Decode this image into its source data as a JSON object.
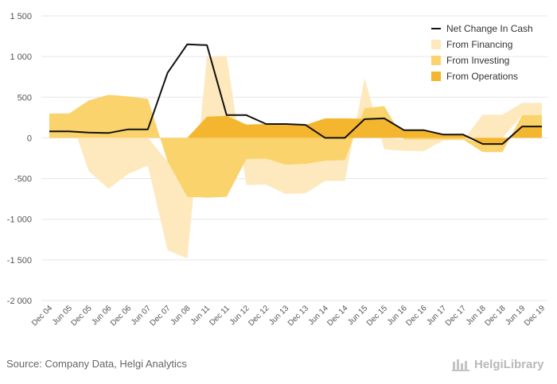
{
  "chart_data": {
    "type": "area",
    "x": [
      "Dec 04",
      "Jun 05",
      "Dec 05",
      "Jun 06",
      "Dec 06",
      "Jun 07",
      "Dec 07",
      "Jun 08",
      "Jun 11",
      "Dec 11",
      "Jun 12",
      "Dec 12",
      "Jun 13",
      "Dec 13",
      "Jun 14",
      "Dec 14",
      "Jun 15",
      "Dec 15",
      "Jun 16",
      "Dec 16",
      "Jun 17",
      "Dec 17",
      "Jun 18",
      "Dec 18",
      "Jun 19",
      "Dec 19"
    ],
    "ylim": [
      -2000,
      1500
    ],
    "yticks": [
      1500,
      1000,
      500,
      0,
      -500,
      -1000,
      -1500,
      -2000
    ],
    "ytick_labels": [
      "1 500",
      "1 000",
      "500",
      "0",
      "-500",
      "-1 000",
      "-1 500",
      "-2 000"
    ],
    "xlabel": "",
    "ylabel": "",
    "grid": true,
    "legend_position": "top-right",
    "series": [
      {
        "name": "From Operations",
        "color": "#f5b62f",
        "values": [
          0,
          0,
          0,
          0,
          0,
          0,
          0,
          0,
          260,
          270,
          165,
          170,
          160,
          160,
          240,
          240,
          235,
          240,
          95,
          100,
          40,
          40,
          -75,
          -75,
          140,
          140
        ]
      },
      {
        "name": "From Investing",
        "color": "#fbd36c",
        "values": [
          300,
          300,
          460,
          530,
          510,
          480,
          -290,
          -725,
          -735,
          -725,
          -260,
          -255,
          -330,
          -320,
          -280,
          -275,
          130,
          150,
          -20,
          -20,
          -20,
          -20,
          -100,
          -100,
          140,
          140
        ]
      },
      {
        "name": "From Financing",
        "color": "#fde9bd",
        "values": [
          0,
          0,
          -410,
          -625,
          -445,
          -340,
          -1090,
          -760,
          740,
          735,
          -320,
          -320,
          -360,
          -360,
          -250,
          -255,
          370,
          -140,
          -140,
          -145,
          -10,
          -10,
          285,
          285,
          150,
          150
        ]
      },
      {
        "name": "Net Change In Cash",
        "color": "#111111",
        "type": "line",
        "values": [
          80,
          80,
          65,
          60,
          105,
          105,
          800,
          1150,
          1140,
          280,
          280,
          170,
          170,
          160,
          0,
          0,
          230,
          240,
          95,
          95,
          40,
          40,
          -75,
          -75,
          140,
          140
        ]
      }
    ]
  },
  "footer": {
    "source": "Source: Company Data, Helgi Analytics",
    "brand": "HelgiLibrary"
  }
}
